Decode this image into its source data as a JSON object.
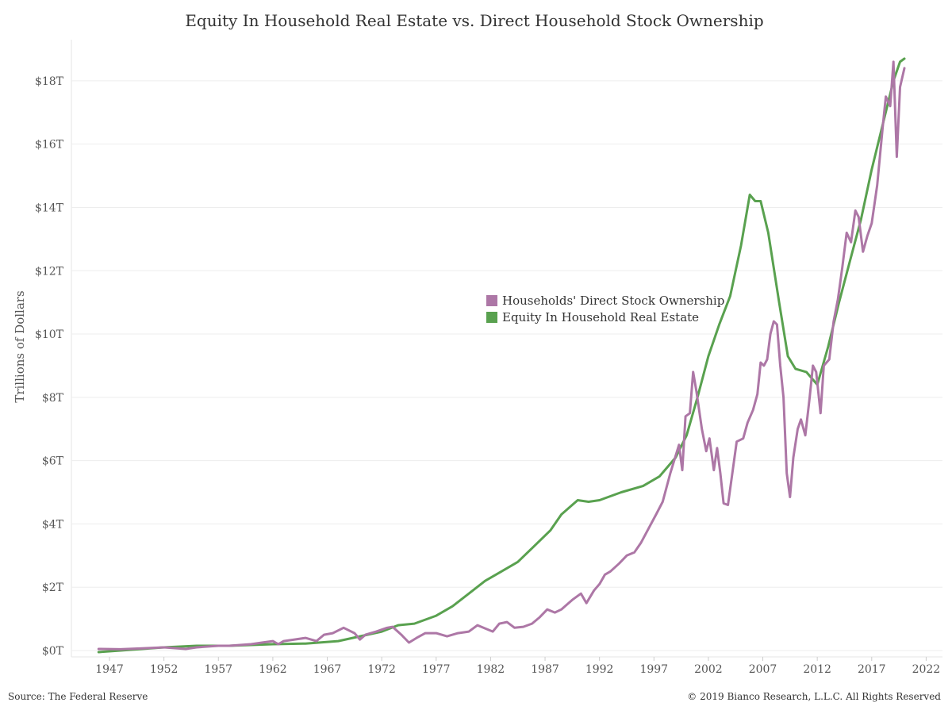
{
  "chart_data": {
    "type": "line",
    "title": "Equity In Household Real Estate vs. Direct Household Stock Ownership",
    "ylabel": "Trillions of Dollars",
    "xlabel": "",
    "xlim": [
      1943.5,
      2023.5
    ],
    "ylim": [
      -0.2,
      19.3
    ],
    "x_ticks": [
      1947,
      1952,
      1957,
      1962,
      1967,
      1972,
      1977,
      1982,
      1987,
      1992,
      1997,
      2002,
      2007,
      2012,
      2017,
      2022
    ],
    "x_tick_labels": [
      "1947",
      "1952",
      "1957",
      "1962",
      "1967",
      "1972",
      "1977",
      "1982",
      "1987",
      "1992",
      "1997",
      "2002",
      "2007",
      "2012",
      "2017",
      "2022"
    ],
    "y_ticks": [
      0,
      2,
      4,
      6,
      8,
      10,
      12,
      14,
      16,
      18
    ],
    "y_tick_labels": [
      "$0T",
      "$2T",
      "$4T",
      "$6T",
      "$8T",
      "$10T",
      "$12T",
      "$14T",
      "$16T",
      "$18T"
    ],
    "grid": true,
    "legend_position": "center-right",
    "series": [
      {
        "name": "Households' Direct Stock Ownership",
        "color": "#AD77A6",
        "points": [
          [
            1946,
            0.05
          ],
          [
            1948,
            0.04
          ],
          [
            1950,
            0.07
          ],
          [
            1952,
            0.1
          ],
          [
            1954,
            0.05
          ],
          [
            1955,
            0.1
          ],
          [
            1957,
            0.15
          ],
          [
            1958,
            0.15
          ],
          [
            1960,
            0.2
          ],
          [
            1961,
            0.25
          ],
          [
            1962,
            0.3
          ],
          [
            1962.5,
            0.2
          ],
          [
            1963,
            0.3
          ],
          [
            1964,
            0.35
          ],
          [
            1965,
            0.4
          ],
          [
            1966,
            0.3
          ],
          [
            1966.7,
            0.5
          ],
          [
            1967.5,
            0.55
          ],
          [
            1968.5,
            0.72
          ],
          [
            1969.5,
            0.55
          ],
          [
            1970,
            0.35
          ],
          [
            1970.5,
            0.5
          ],
          [
            1971.5,
            0.6
          ],
          [
            1972.5,
            0.72
          ],
          [
            1973,
            0.75
          ],
          [
            1973.8,
            0.5
          ],
          [
            1974.5,
            0.25
          ],
          [
            1975.2,
            0.4
          ],
          [
            1976,
            0.55
          ],
          [
            1977,
            0.55
          ],
          [
            1978,
            0.45
          ],
          [
            1979,
            0.55
          ],
          [
            1980,
            0.6
          ],
          [
            1980.8,
            0.8
          ],
          [
            1981.5,
            0.7
          ],
          [
            1982.2,
            0.6
          ],
          [
            1982.8,
            0.85
          ],
          [
            1983.5,
            0.9
          ],
          [
            1984.2,
            0.72
          ],
          [
            1985,
            0.75
          ],
          [
            1985.8,
            0.85
          ],
          [
            1986.5,
            1.05
          ],
          [
            1987.2,
            1.3
          ],
          [
            1987.9,
            1.2
          ],
          [
            1988.5,
            1.3
          ],
          [
            1989.5,
            1.6
          ],
          [
            1990.3,
            1.8
          ],
          [
            1990.8,
            1.5
          ],
          [
            1991.5,
            1.9
          ],
          [
            1992,
            2.1
          ],
          [
            1992.5,
            2.4
          ],
          [
            1993,
            2.5
          ],
          [
            1993.8,
            2.75
          ],
          [
            1994.5,
            3.0
          ],
          [
            1995.2,
            3.1
          ],
          [
            1995.8,
            3.4
          ],
          [
            1996.5,
            3.85
          ],
          [
            1997.2,
            4.3
          ],
          [
            1997.8,
            4.7
          ],
          [
            1998.5,
            5.6
          ],
          [
            1999.3,
            6.5
          ],
          [
            1999.6,
            5.7
          ],
          [
            1999.9,
            7.4
          ],
          [
            2000.3,
            7.5
          ],
          [
            2000.6,
            8.8
          ],
          [
            2000.9,
            8.2
          ],
          [
            2001.4,
            7.0
          ],
          [
            2001.8,
            6.3
          ],
          [
            2002.1,
            6.7
          ],
          [
            2002.5,
            5.7
          ],
          [
            2002.8,
            6.4
          ],
          [
            2003.1,
            5.6
          ],
          [
            2003.4,
            4.65
          ],
          [
            2003.8,
            4.6
          ],
          [
            2004.2,
            5.6
          ],
          [
            2004.6,
            6.6
          ],
          [
            2005.2,
            6.7
          ],
          [
            2005.6,
            7.2
          ],
          [
            2006.1,
            7.6
          ],
          [
            2006.5,
            8.1
          ],
          [
            2006.8,
            9.1
          ],
          [
            2007.1,
            9.0
          ],
          [
            2007.4,
            9.2
          ],
          [
            2007.7,
            10.0
          ],
          [
            2008.0,
            10.4
          ],
          [
            2008.3,
            10.3
          ],
          [
            2008.6,
            9.0
          ],
          [
            2008.9,
            8.0
          ],
          [
            2009.2,
            5.6
          ],
          [
            2009.5,
            4.85
          ],
          [
            2009.8,
            6.1
          ],
          [
            2010.2,
            7.0
          ],
          [
            2010.5,
            7.3
          ],
          [
            2010.9,
            6.8
          ],
          [
            2011.3,
            8.0
          ],
          [
            2011.6,
            9.0
          ],
          [
            2011.9,
            8.8
          ],
          [
            2012.3,
            7.5
          ],
          [
            2012.6,
            9.0
          ],
          [
            2013.1,
            9.2
          ],
          [
            2013.5,
            10.4
          ],
          [
            2013.9,
            11.1
          ],
          [
            2014.3,
            12.1
          ],
          [
            2014.7,
            13.2
          ],
          [
            2015.1,
            12.9
          ],
          [
            2015.5,
            13.9
          ],
          [
            2015.8,
            13.7
          ],
          [
            2016.2,
            12.6
          ],
          [
            2016.6,
            13.1
          ],
          [
            2017.0,
            13.5
          ],
          [
            2017.5,
            14.7
          ],
          [
            2018.0,
            16.5
          ],
          [
            2018.3,
            17.5
          ],
          [
            2018.7,
            17.2
          ],
          [
            2019.0,
            18.6
          ],
          [
            2019.3,
            15.6
          ],
          [
            2019.6,
            17.8
          ],
          [
            2020.0,
            18.4
          ]
        ]
      },
      {
        "name": "Equity In Household Real Estate",
        "color": "#59A14F",
        "points": [
          [
            1946,
            -0.05
          ],
          [
            1948,
            0.0
          ],
          [
            1950,
            0.05
          ],
          [
            1952,
            0.1
          ],
          [
            1955,
            0.15
          ],
          [
            1958,
            0.15
          ],
          [
            1962,
            0.2
          ],
          [
            1965,
            0.22
          ],
          [
            1968,
            0.3
          ],
          [
            1970,
            0.45
          ],
          [
            1972,
            0.6
          ],
          [
            1973.5,
            0.8
          ],
          [
            1975,
            0.85
          ],
          [
            1977,
            1.1
          ],
          [
            1978.5,
            1.4
          ],
          [
            1980,
            1.8
          ],
          [
            1981.5,
            2.2
          ],
          [
            1983,
            2.5
          ],
          [
            1984.5,
            2.8
          ],
          [
            1986,
            3.3
          ],
          [
            1987.5,
            3.8
          ],
          [
            1988.5,
            4.3
          ],
          [
            1989.5,
            4.6
          ],
          [
            1990,
            4.75
          ],
          [
            1991,
            4.7
          ],
          [
            1992,
            4.75
          ],
          [
            1994,
            5.0
          ],
          [
            1996,
            5.2
          ],
          [
            1997.5,
            5.5
          ],
          [
            1999,
            6.1
          ],
          [
            2000,
            6.8
          ],
          [
            2001,
            8.0
          ],
          [
            2002,
            9.3
          ],
          [
            2003,
            10.3
          ],
          [
            2004,
            11.2
          ],
          [
            2005,
            12.8
          ],
          [
            2005.8,
            14.4
          ],
          [
            2006.3,
            14.2
          ],
          [
            2006.8,
            14.2
          ],
          [
            2007.5,
            13.2
          ],
          [
            2008.5,
            11.0
          ],
          [
            2009.3,
            9.3
          ],
          [
            2010,
            8.9
          ],
          [
            2011,
            8.8
          ],
          [
            2012,
            8.4
          ],
          [
            2013,
            9.6
          ],
          [
            2014,
            11.0
          ],
          [
            2015,
            12.3
          ],
          [
            2016,
            13.6
          ],
          [
            2017,
            15.2
          ],
          [
            2018,
            16.6
          ],
          [
            2019,
            18.0
          ],
          [
            2019.6,
            18.6
          ],
          [
            2020,
            18.7
          ]
        ]
      }
    ]
  },
  "footer": {
    "source": "Source: The Federal Reserve",
    "copyright": "© 2019 Bianco Research, L.L.C. All Rights Reserved"
  }
}
